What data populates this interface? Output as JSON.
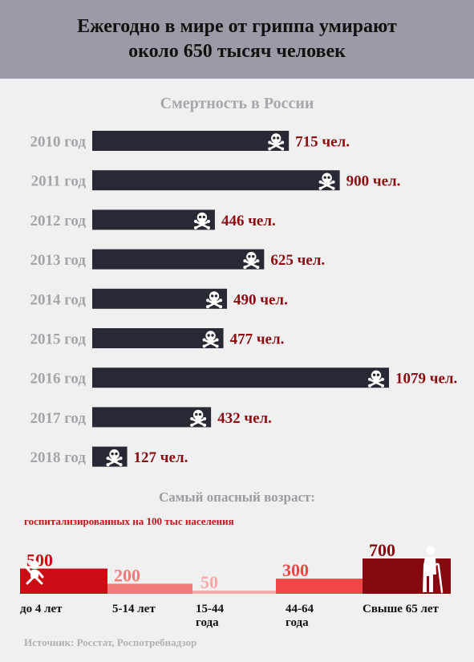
{
  "header": {
    "title_line1": "Ежегодно в мире от гриппа умирают",
    "title_line2": "около 650 тысяч человек"
  },
  "colors": {
    "header_bg": "#9a9ba4",
    "bar": "#272a35",
    "value_text": "#8b0d12",
    "year_text": "#a3a5ab",
    "age_colors": [
      "#cb0c14",
      "#f07b7b",
      "#f6a9a9",
      "#f14646",
      "#840a10"
    ]
  },
  "icons": {
    "death": "skull-crossbones-icon",
    "age_young": "baby-icon",
    "age_old": "elderly-icon"
  },
  "source": "Источник: Росстат, Роспотребнадзор",
  "chart_data": [
    {
      "type": "bar",
      "orientation": "horizontal",
      "title": "Смертность в России",
      "categories": [
        "2010 год",
        "2011 год",
        "2012 год",
        "2013 год",
        "2014 год",
        "2015 год",
        "2016 год",
        "2017 год",
        "2018 год"
      ],
      "values": [
        715,
        900,
        446,
        625,
        490,
        477,
        1079,
        432,
        127
      ],
      "value_labels": [
        "715 чел.",
        "900 чел.",
        "446 чел.",
        "625 чел.",
        "490 чел.",
        "477 чел.",
        "1079 чел.",
        "432 чел.",
        "127 чел."
      ],
      "xlim": [
        0,
        1079
      ],
      "grid": false
    },
    {
      "type": "bar",
      "title": "Самый опасный возраст:",
      "subtitle": "госпитализированных на 100 тыс населения",
      "categories": [
        [
          "до 4 лет"
        ],
        [
          "5-14 лет"
        ],
        [
          "15-44",
          "года"
        ],
        [
          "44-64",
          "года"
        ],
        [
          "Свыше 65 лет"
        ]
      ],
      "values": [
        500,
        200,
        50,
        300,
        700
      ],
      "ylim": [
        0,
        700
      ],
      "grid": false
    }
  ]
}
